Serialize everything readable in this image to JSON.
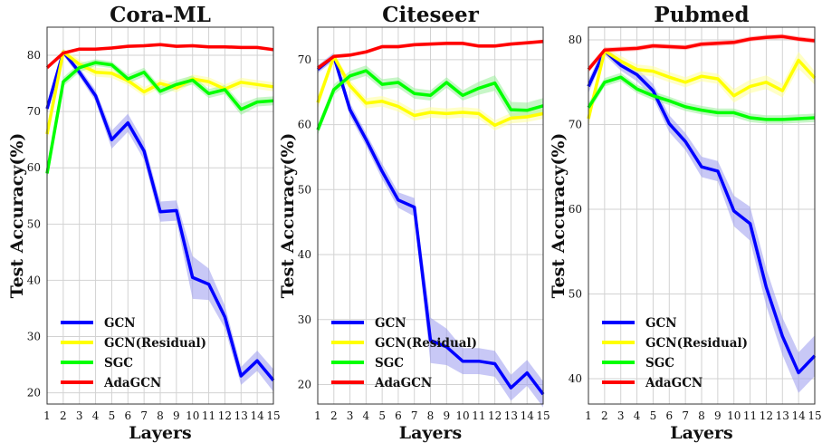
{
  "chart_data": [
    {
      "type": "line",
      "title": "Cora-ML",
      "xlabel": "Layers",
      "ylabel": "Test Accuracy(%)",
      "x": [
        1,
        2,
        3,
        4,
        5,
        6,
        7,
        8,
        9,
        10,
        11,
        12,
        13,
        14,
        15
      ],
      "xlim": [
        1,
        15
      ],
      "ylim": [
        18,
        85
      ],
      "yticks": [
        20,
        30,
        40,
        50,
        60,
        70,
        80
      ],
      "grid": true,
      "legend_position": "lower-left",
      "series": [
        {
          "name": "GCN",
          "color": "#0000ff",
          "band_color": "#9a9aee",
          "values": [
            70.5,
            80.6,
            77.0,
            72.8,
            65.0,
            68.0,
            63.0,
            52.2,
            52.4,
            40.5,
            39.3,
            33.5,
            23.0,
            25.7,
            22.2
          ],
          "spread": [
            1,
            0.6,
            0.8,
            1,
            1.6,
            1.6,
            1.6,
            1.8,
            1.8,
            3.8,
            2.8,
            2,
            1.6,
            1.8,
            2
          ]
        },
        {
          "name": "GCN(Residual)",
          "color": "#ffff00",
          "band_color": "#ffff99",
          "values": [
            66.0,
            80.6,
            78.4,
            77.0,
            76.8,
            75.5,
            73.5,
            75.0,
            74.2,
            75.8,
            75.3,
            74.0,
            75.2,
            74.8,
            74.4
          ],
          "spread": [
            1.5,
            0.6,
            0.8,
            0.8,
            0.8,
            0.8,
            0.8,
            0.8,
            0.8,
            0.8,
            0.8,
            0.8,
            0.8,
            0.8,
            0.8
          ]
        },
        {
          "name": "SGC",
          "color": "#00ff00",
          "band_color": "#99ee99",
          "values": [
            59.0,
            75.3,
            77.8,
            78.7,
            78.3,
            75.8,
            77.0,
            73.6,
            74.8,
            75.6,
            73.2,
            73.9,
            70.4,
            71.7,
            71.9
          ],
          "spread": [
            1,
            0.8,
            0.8,
            0.6,
            0.6,
            0.8,
            0.8,
            0.8,
            0.8,
            0.8,
            0.8,
            0.8,
            1,
            0.8,
            0.8
          ]
        },
        {
          "name": "AdaGCN",
          "color": "#ff0000",
          "band_color": "#ff9a9a",
          "values": [
            77.8,
            80.4,
            81.1,
            81.1,
            81.3,
            81.6,
            81.7,
            81.9,
            81.6,
            81.7,
            81.5,
            81.5,
            81.4,
            81.4,
            81.0
          ],
          "spread": [
            0.4,
            0.3,
            0.3,
            0.3,
            0.3,
            0.3,
            0.3,
            0.3,
            0.3,
            0.3,
            0.3,
            0.3,
            0.3,
            0.3,
            0.3
          ]
        }
      ]
    },
    {
      "type": "line",
      "title": "Citeseer",
      "xlabel": "Layers",
      "ylabel": "Test Accuracy(%)",
      "x": [
        1,
        2,
        3,
        4,
        5,
        6,
        7,
        8,
        9,
        10,
        11,
        12,
        13,
        14,
        15
      ],
      "xlim": [
        1,
        15
      ],
      "ylim": [
        17,
        75
      ],
      "yticks": [
        20,
        30,
        40,
        50,
        60,
        70
      ],
      "grid": true,
      "legend_position": "lower-left",
      "series": [
        {
          "name": "GCN",
          "color": "#0000ff",
          "band_color": "#9a9aee",
          "values": [
            68.5,
            70.5,
            62.3,
            57.7,
            52.8,
            48.4,
            47.3,
            26.8,
            25.8,
            23.6,
            23.6,
            23.2,
            19.5,
            21.8,
            18.5
          ],
          "spread": [
            0.6,
            0.6,
            1,
            1,
            1.2,
            1.2,
            1.4,
            3.5,
            2.8,
            2,
            2,
            2,
            2,
            2,
            2
          ]
        },
        {
          "name": "GCN(Residual)",
          "color": "#ffff00",
          "band_color": "#ffff99",
          "values": [
            63.4,
            70.5,
            66.0,
            63.3,
            63.6,
            62.8,
            61.4,
            61.9,
            61.7,
            61.9,
            61.7,
            59.9,
            61.0,
            61.2,
            61.7
          ],
          "spread": [
            1,
            0.6,
            0.8,
            0.8,
            0.8,
            0.8,
            0.8,
            0.8,
            0.8,
            0.8,
            0.8,
            0.8,
            0.8,
            0.8,
            0.8
          ]
        },
        {
          "name": "SGC",
          "color": "#00ff00",
          "band_color": "#99ee99",
          "values": [
            59.2,
            65.4,
            67.5,
            68.3,
            66.2,
            66.5,
            64.8,
            64.5,
            66.5,
            64.5,
            65.6,
            66.4,
            62.3,
            62.2,
            62.9
          ],
          "spread": [
            0.8,
            0.8,
            0.8,
            0.8,
            0.8,
            0.8,
            0.8,
            0.8,
            0.8,
            0.8,
            1,
            1.2,
            1.2,
            1.2,
            1.2
          ]
        },
        {
          "name": "AdaGCN",
          "color": "#ff0000",
          "band_color": "#ff9a9a",
          "values": [
            68.7,
            70.5,
            70.7,
            71.2,
            72.0,
            72.0,
            72.3,
            72.4,
            72.5,
            72.5,
            72.1,
            72.1,
            72.4,
            72.6,
            72.8
          ],
          "spread": [
            0.4,
            0.3,
            0.3,
            0.3,
            0.3,
            0.3,
            0.3,
            0.3,
            0.3,
            0.3,
            0.3,
            0.3,
            0.3,
            0.3,
            0.3
          ]
        }
      ]
    },
    {
      "type": "line",
      "title": "Pubmed",
      "xlabel": "Layers",
      "ylabel": "Test Accuracy(%)",
      "x": [
        1,
        2,
        3,
        4,
        5,
        6,
        7,
        8,
        9,
        10,
        11,
        12,
        13,
        14,
        15
      ],
      "xlim": [
        1,
        15
      ],
      "ylim": [
        37,
        81.5
      ],
      "yticks": [
        40,
        50,
        60,
        70,
        80
      ],
      "grid": true,
      "legend_position": "lower-left",
      "series": [
        {
          "name": "GCN",
          "color": "#0000ff",
          "band_color": "#9a9aee",
          "values": [
            74.5,
            78.7,
            77.0,
            75.9,
            74.0,
            70.1,
            68.0,
            65.0,
            64.5,
            59.8,
            58.3,
            50.8,
            45.0,
            40.7,
            42.7
          ],
          "spread": [
            0.8,
            0.5,
            0.6,
            0.8,
            0.8,
            1,
            1,
            1.2,
            1.2,
            1.8,
            2,
            2.2,
            2.2,
            2.4,
            2.4
          ]
        },
        {
          "name": "GCN(Residual)",
          "color": "#ffff00",
          "band_color": "#ffff99",
          "values": [
            70.7,
            78.7,
            77.5,
            76.5,
            76.3,
            75.6,
            75.0,
            75.7,
            75.4,
            73.4,
            74.5,
            75.0,
            74.0,
            77.6,
            75.5
          ],
          "spread": [
            1,
            0.5,
            0.6,
            0.6,
            0.6,
            0.6,
            0.6,
            0.6,
            0.6,
            0.8,
            0.8,
            0.8,
            0.8,
            1,
            0.8
          ]
        },
        {
          "name": "SGC",
          "color": "#00ff00",
          "band_color": "#99ee99",
          "values": [
            72.0,
            75.0,
            75.6,
            74.2,
            73.4,
            72.8,
            72.1,
            71.7,
            71.4,
            71.4,
            70.8,
            70.6,
            70.6,
            70.7,
            70.8
          ],
          "spread": [
            0.6,
            0.5,
            0.5,
            0.5,
            0.5,
            0.5,
            0.5,
            0.5,
            0.5,
            0.5,
            0.5,
            0.5,
            0.5,
            0.5,
            0.5
          ]
        },
        {
          "name": "AdaGCN",
          "color": "#ff0000",
          "band_color": "#ff9a9a",
          "values": [
            76.5,
            78.8,
            78.9,
            79.0,
            79.3,
            79.2,
            79.1,
            79.5,
            79.6,
            79.7,
            80.1,
            80.3,
            80.4,
            80.1,
            79.9
          ],
          "spread": [
            0.4,
            0.3,
            0.3,
            0.3,
            0.3,
            0.3,
            0.3,
            0.3,
            0.3,
            0.3,
            0.3,
            0.3,
            0.3,
            0.3,
            0.3
          ]
        }
      ]
    }
  ]
}
